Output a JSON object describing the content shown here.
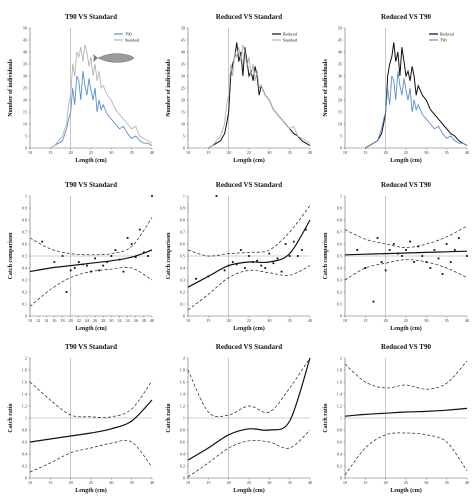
{
  "colors": {
    "standard": "#b4b4b4",
    "t90": "#5b8fd4",
    "reduced": "#111111",
    "zero_line": "#9a9a9a",
    "ref_line": "#a0a0a0"
  },
  "chart_data": [
    {
      "id": "hist-t90-vs-standard",
      "type": "line",
      "title": "T90 VS Standard",
      "xlabel": "Length (cm)",
      "ylabel": "Number of individuals",
      "xlim": [
        10,
        40
      ],
      "ylim": [
        0,
        50
      ],
      "xticks": [
        10,
        15,
        20,
        25,
        30,
        35,
        40
      ],
      "yticks": [
        0,
        5,
        10,
        15,
        20,
        25,
        30,
        35,
        40,
        45,
        50
      ],
      "vline": 20,
      "legend": "top-right",
      "has_fish_icon": true,
      "x": [
        15,
        16,
        17,
        18,
        19,
        19.5,
        20,
        20.5,
        21,
        21.5,
        22,
        22.5,
        23,
        23.5,
        24,
        24.5,
        25,
        25.5,
        26,
        26.5,
        27,
        27.5,
        28,
        29,
        30,
        31,
        32,
        33,
        34,
        35,
        36,
        37,
        38,
        39,
        40
      ],
      "series": [
        {
          "name": "T90",
          "color_key": "t90",
          "values": [
            0,
            1,
            2,
            3,
            8,
            12,
            15,
            25,
            18,
            30,
            28,
            20,
            32,
            26,
            22,
            29,
            24,
            20,
            25,
            15,
            20,
            16,
            18,
            14,
            12,
            10,
            8,
            9,
            6,
            4,
            5,
            3,
            2,
            2,
            1
          ]
        },
        {
          "name": "Standard",
          "color_key": "standard",
          "values": [
            0,
            1,
            3,
            5,
            10,
            18,
            22,
            35,
            30,
            40,
            38,
            42,
            36,
            43,
            40,
            34,
            38,
            30,
            35,
            28,
            32,
            25,
            26,
            22,
            20,
            16,
            14,
            12,
            10,
            8,
            9,
            5,
            4,
            3,
            2
          ]
        }
      ]
    },
    {
      "id": "hist-reduced-vs-standard",
      "type": "line",
      "title": "Reduced VS Standard",
      "xlabel": "Length (cm)",
      "ylabel": "Number of individuals",
      "xlim": [
        10,
        40
      ],
      "ylim": [
        0,
        50
      ],
      "xticks": [
        10,
        15,
        20,
        25,
        30,
        35,
        40
      ],
      "yticks": [
        0,
        5,
        10,
        15,
        20,
        25,
        30,
        35,
        40,
        45,
        50
      ],
      "vline": 20,
      "legend": "top-right",
      "x": [
        15,
        16,
        17,
        18,
        19,
        19.5,
        20,
        20.5,
        21,
        21.5,
        22,
        22.5,
        23,
        23.5,
        24,
        24.5,
        25,
        25.5,
        26,
        26.5,
        27,
        27.5,
        28,
        29,
        30,
        31,
        32,
        33,
        34,
        35,
        36,
        37,
        38,
        39,
        40
      ],
      "series": [
        {
          "name": "Reduced",
          "color_key": "reduced",
          "values": [
            0,
            1,
            2,
            3,
            6,
            10,
            15,
            30,
            35,
            38,
            44,
            36,
            40,
            30,
            42,
            36,
            30,
            32,
            28,
            34,
            30,
            22,
            26,
            22,
            20,
            16,
            14,
            12,
            10,
            8,
            6,
            5,
            3,
            2,
            1
          ]
        },
        {
          "name": "Standard",
          "color_key": "standard",
          "values": [
            0,
            1,
            3,
            5,
            10,
            18,
            22,
            35,
            30,
            40,
            38,
            42,
            36,
            43,
            40,
            34,
            38,
            30,
            35,
            28,
            32,
            25,
            26,
            22,
            20,
            16,
            14,
            12,
            10,
            8,
            9,
            5,
            4,
            3,
            2
          ]
        }
      ]
    },
    {
      "id": "hist-reduced-vs-t90",
      "type": "line",
      "title": "Reduced VS T90",
      "xlabel": "Length (cm)",
      "ylabel": "Number of individuals",
      "xlim": [
        10,
        40
      ],
      "ylim": [
        0,
        50
      ],
      "xticks": [
        10,
        15,
        20,
        25,
        30,
        35,
        40
      ],
      "yticks": [
        0,
        5,
        10,
        15,
        20,
        25,
        30,
        35,
        40,
        45,
        50
      ],
      "vline": 20,
      "legend": "top-right",
      "x": [
        15,
        16,
        17,
        18,
        19,
        19.5,
        20,
        20.5,
        21,
        21.5,
        22,
        22.5,
        23,
        23.5,
        24,
        24.5,
        25,
        25.5,
        26,
        26.5,
        27,
        27.5,
        28,
        29,
        30,
        31,
        32,
        33,
        34,
        35,
        36,
        37,
        38,
        39,
        40
      ],
      "series": [
        {
          "name": "Reduced",
          "color_key": "reduced",
          "values": [
            0,
            1,
            2,
            3,
            6,
            10,
            15,
            30,
            35,
            38,
            44,
            36,
            40,
            30,
            42,
            36,
            30,
            32,
            28,
            34,
            30,
            22,
            26,
            22,
            20,
            16,
            14,
            12,
            10,
            8,
            6,
            5,
            3,
            2,
            1
          ]
        },
        {
          "name": "T90",
          "color_key": "t90",
          "values": [
            0,
            1,
            2,
            3,
            8,
            12,
            15,
            25,
            18,
            30,
            28,
            20,
            32,
            26,
            22,
            29,
            24,
            20,
            25,
            15,
            20,
            16,
            18,
            14,
            12,
            10,
            8,
            9,
            6,
            4,
            5,
            3,
            2,
            2,
            1
          ]
        }
      ]
    },
    {
      "id": "cc-t90-vs-standard",
      "type": "scatter",
      "title": "T90 VS Standard",
      "xlabel": "Length (cm)",
      "ylabel": "Catch comparison",
      "xlim": [
        10,
        40
      ],
      "ylim": [
        0,
        1
      ],
      "xticks": [
        10,
        12,
        14,
        16,
        18,
        20,
        22,
        24,
        26,
        28,
        30,
        32,
        34,
        36,
        38,
        40
      ],
      "yticks": [
        0,
        0.1,
        0.2,
        0.3,
        0.4,
        0.5,
        0.6,
        0.7,
        0.8,
        0.9,
        1
      ],
      "vline": 20,
      "hline": 0.5,
      "points_x": [
        13,
        16,
        18,
        19,
        20,
        21,
        22,
        23,
        24,
        25,
        26,
        27,
        28,
        29,
        30,
        31,
        32,
        33,
        34,
        35,
        36,
        37,
        38,
        39,
        40
      ],
      "points_y": [
        0.62,
        0.45,
        0.5,
        0.2,
        0.38,
        0.4,
        0.45,
        0.43,
        0.42,
        0.37,
        0.48,
        0.38,
        0.42,
        0.45,
        0.5,
        0.55,
        0.47,
        0.37,
        0.65,
        0.6,
        0.49,
        0.72,
        0.53,
        0.5,
        1.0
      ],
      "fit_x": [
        10,
        15,
        20,
        25,
        30,
        35,
        40
      ],
      "fit": [
        0.37,
        0.4,
        0.42,
        0.44,
        0.46,
        0.49,
        0.55
      ],
      "ci_upper": [
        0.65,
        0.56,
        0.52,
        0.51,
        0.52,
        0.58,
        0.82
      ],
      "ci_lower": [
        0.08,
        0.22,
        0.32,
        0.37,
        0.39,
        0.4,
        0.3
      ]
    },
    {
      "id": "cc-reduced-vs-standard",
      "type": "scatter",
      "title": "Reduced VS Standard",
      "xlabel": "Length (cm)",
      "ylabel": "Catch comparison",
      "xlim": [
        10,
        40
      ],
      "ylim": [
        0,
        1
      ],
      "xticks": [
        10,
        15,
        20,
        25,
        30,
        35,
        40
      ],
      "yticks": [
        0,
        0.1,
        0.2,
        0.3,
        0.4,
        0.5,
        0.6,
        0.7,
        0.8,
        0.9,
        1
      ],
      "vline": 20,
      "hline": 0.5,
      "points_x": [
        12,
        15,
        17,
        19,
        20,
        21,
        22,
        23,
        24,
        25,
        26,
        27,
        28,
        29,
        30,
        31,
        32,
        33,
        34,
        35,
        36,
        37,
        38,
        39
      ],
      "points_y": [
        0.31,
        0.33,
        1.0,
        0.38,
        0.42,
        0.45,
        0.43,
        0.55,
        0.4,
        0.5,
        0.45,
        0.46,
        0.42,
        0.4,
        0.52,
        0.44,
        0.48,
        0.37,
        0.6,
        0.5,
        0.62,
        0.5,
        0.55,
        0.72
      ],
      "fit_x": [
        10,
        15,
        20,
        25,
        30,
        35,
        40
      ],
      "fit": [
        0.24,
        0.33,
        0.42,
        0.45,
        0.45,
        0.52,
        0.8
      ],
      "ci_upper": [
        0.55,
        0.5,
        0.52,
        0.53,
        0.55,
        0.7,
        0.92
      ],
      "ci_lower": [
        0.05,
        0.18,
        0.32,
        0.38,
        0.36,
        0.34,
        0.42
      ]
    },
    {
      "id": "cc-reduced-vs-t90",
      "type": "scatter",
      "title": "Reduced VS T90",
      "xlabel": "Length (cm)",
      "ylabel": "Catch comparison",
      "xlim": [
        10,
        40
      ],
      "ylim": [
        0,
        1
      ],
      "xticks": [
        10,
        15,
        20,
        25,
        30,
        35,
        40
      ],
      "yticks": [
        0,
        0.1,
        0.2,
        0.3,
        0.4,
        0.5,
        0.6,
        0.7,
        0.8,
        0.9,
        1
      ],
      "vline": 20,
      "hline": 0.5,
      "points_x": [
        13,
        15,
        17,
        18,
        19,
        20,
        21,
        22,
        23,
        24,
        25,
        26,
        27,
        28,
        29,
        30,
        31,
        32,
        33,
        34,
        35,
        36,
        37,
        38,
        40
      ],
      "points_y": [
        0.55,
        0.4,
        0.12,
        0.65,
        0.45,
        0.38,
        0.55,
        0.6,
        0.52,
        0.5,
        0.55,
        0.62,
        0.45,
        0.58,
        0.5,
        0.45,
        0.4,
        0.55,
        0.48,
        0.35,
        0.6,
        0.45,
        0.55,
        0.65,
        0.5
      ],
      "fit_x": [
        10,
        15,
        20,
        25,
        30,
        35,
        40
      ],
      "fit": [
        0.51,
        0.515,
        0.52,
        0.525,
        0.53,
        0.535,
        0.54
      ],
      "ci_upper": [
        0.72,
        0.64,
        0.6,
        0.57,
        0.6,
        0.66,
        0.75
      ],
      "ci_lower": [
        0.3,
        0.4,
        0.44,
        0.47,
        0.45,
        0.4,
        0.32
      ]
    },
    {
      "id": "cr-t90-vs-standard",
      "type": "line",
      "title": "T90 VS Standard",
      "xlabel": "Length (cm)",
      "ylabel": "Catch ratio",
      "xlim": [
        10,
        40
      ],
      "ylim": [
        0,
        2
      ],
      "xticks": [
        10,
        15,
        20,
        25,
        30,
        35,
        40
      ],
      "yticks": [
        0,
        0.2,
        0.4,
        0.6,
        0.8,
        1,
        1.2,
        1.4,
        1.6,
        1.8,
        2
      ],
      "vline": 20,
      "hline": 1,
      "x": [
        10,
        15,
        20,
        25,
        30,
        35,
        40
      ],
      "fit": [
        0.6,
        0.65,
        0.7,
        0.75,
        0.82,
        0.95,
        1.3
      ],
      "ci_upper": [
        1.6,
        1.3,
        1.05,
        1.02,
        1.02,
        1.15,
        1.62
      ],
      "ci_lower": [
        0.1,
        0.25,
        0.42,
        0.5,
        0.58,
        0.6,
        0.18
      ]
    },
    {
      "id": "cr-reduced-vs-standard",
      "type": "line",
      "title": "Reduced VS Standard",
      "xlabel": "Length (cm)",
      "ylabel": "Catch ratio",
      "xlim": [
        10,
        40
      ],
      "ylim": [
        0,
        2
      ],
      "xticks": [
        10,
        15,
        20,
        25,
        30,
        35,
        40
      ],
      "yticks": [
        0,
        0.2,
        0.4,
        0.6,
        0.8,
        1,
        1.2,
        1.4,
        1.6,
        1.8,
        2
      ],
      "vline": 20,
      "hline": 1,
      "x": [
        10,
        15,
        20,
        25,
        30,
        35,
        40
      ],
      "fit": [
        0.3,
        0.5,
        0.72,
        0.82,
        0.8,
        0.95,
        2.0
      ],
      "ci_upper": [
        1.8,
        1.1,
        1.05,
        1.2,
        1.1,
        1.5,
        2.0
      ],
      "ci_lower": [
        0.02,
        0.25,
        0.5,
        0.62,
        0.6,
        0.5,
        0.8
      ]
    },
    {
      "id": "cr-reduced-vs-t90",
      "type": "line",
      "title": "Reduced VS T90",
      "xlabel": "Length (cm)",
      "ylabel": "Catch ratio",
      "xlim": [
        10,
        40
      ],
      "ylim": [
        0,
        2
      ],
      "xticks": [
        10,
        15,
        20,
        25,
        30,
        35,
        40
      ],
      "yticks": [
        0,
        0.2,
        0.4,
        0.6,
        0.8,
        1,
        1.2,
        1.4,
        1.6,
        1.8,
        2
      ],
      "vline": 20,
      "hline": 1,
      "x": [
        10,
        15,
        20,
        25,
        30,
        35,
        40
      ],
      "fit": [
        1.03,
        1.06,
        1.08,
        1.1,
        1.11,
        1.13,
        1.16
      ],
      "ci_upper": [
        1.9,
        1.6,
        1.5,
        1.55,
        1.48,
        1.58,
        1.95
      ],
      "ci_lower": [
        0.05,
        0.5,
        0.72,
        0.75,
        0.72,
        0.6,
        0.12
      ]
    }
  ]
}
